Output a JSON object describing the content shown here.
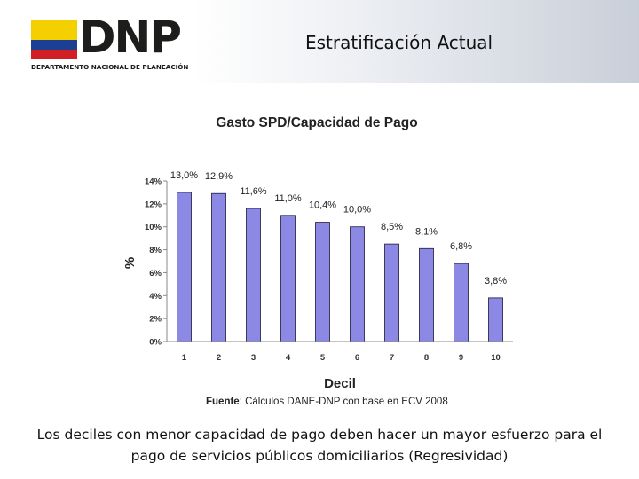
{
  "header": {
    "logo_text": "DNP",
    "logo_subtitle": "DEPARTAMENTO NACIONAL DE PLANEACIÓN",
    "title": "Estratificación Actual"
  },
  "chart_data": {
    "type": "bar",
    "title": "Gasto SPD/Capacidad de Pago",
    "xlabel": "Decil",
    "ylabel": "%",
    "categories": [
      "1",
      "2",
      "3",
      "4",
      "5",
      "6",
      "7",
      "8",
      "9",
      "10"
    ],
    "values": [
      13.0,
      12.9,
      11.6,
      11.0,
      10.4,
      10.0,
      8.5,
      8.1,
      6.8,
      3.8
    ],
    "data_labels": [
      "13,0%",
      "12,9%",
      "11,6%",
      "11,0%",
      "10,4%",
      "10,0%",
      "8,5%",
      "8,1%",
      "6,8%",
      "3,8%"
    ],
    "yticks": [
      0,
      2,
      4,
      6,
      8,
      10,
      12,
      14
    ],
    "ytick_labels": [
      "0%",
      "2%",
      "4%",
      "6%",
      "8%",
      "10%",
      "12%",
      "14%"
    ],
    "ylim": [
      0,
      14
    ],
    "grid": false,
    "legend": "none",
    "bar_color": "#8c89e4",
    "bar_edge_color": "#1a1a3a"
  },
  "source": {
    "label": "Fuente",
    "text": ": Cálculos DANE-DNP con base en ECV 2008"
  },
  "caption": "Los deciles con menor capacidad de pago deben hacer un mayor esfuerzo para el pago de servicios públicos domiciliarios (Regresividad)"
}
